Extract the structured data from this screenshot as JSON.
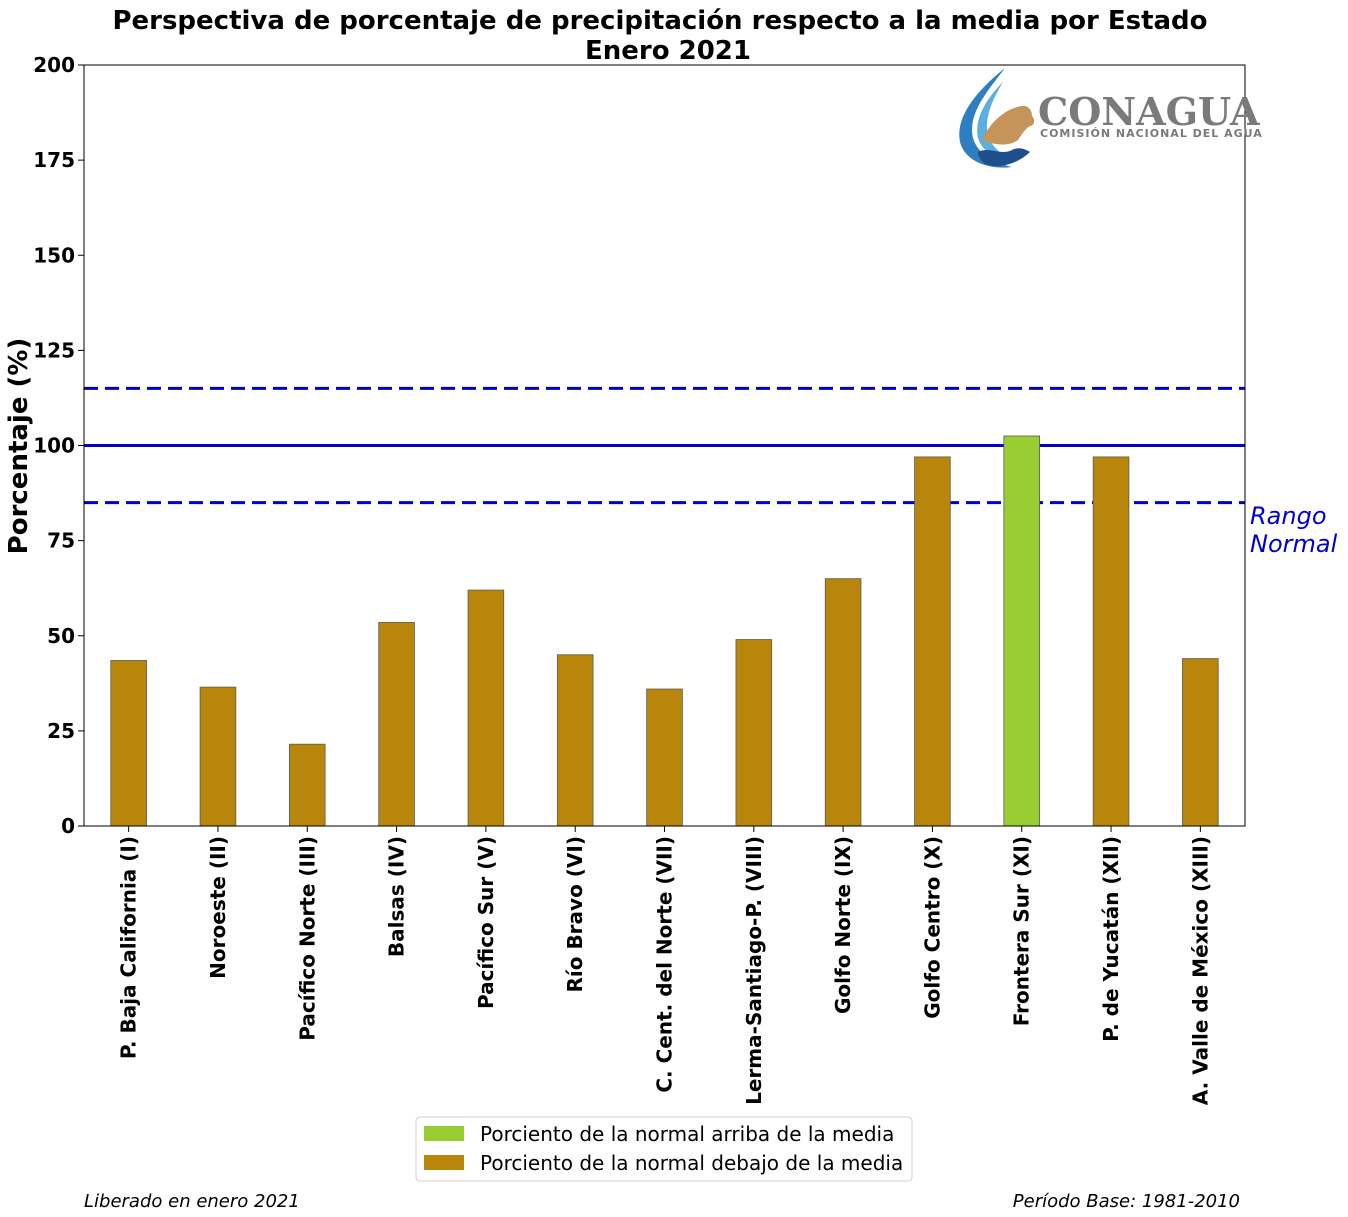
{
  "chart_data": {
    "type": "bar",
    "title": "Perspectiva de porcentaje de precipitación respecto a la media por Estado",
    "subtitle": "Enero 2021",
    "xlabel": "",
    "ylabel": "Porcentaje (%)",
    "ylim": [
      0,
      200
    ],
    "yticks": [
      0,
      25,
      50,
      75,
      100,
      125,
      150,
      175,
      200
    ],
    "categories": [
      "P. Baja California (I)",
      "Noroeste (II)",
      "Pacífico Norte (III)",
      "Balsas (IV)",
      "Pacífico Sur (V)",
      "Río Bravo (VI)",
      "C. Cent. del Norte (VII)",
      "Lerma-Santiago-P. (VIII)",
      "Golfo Norte (IX)",
      "Golfo Centro (X)",
      "Frontera Sur (XI)",
      "P. de Yucatán (XII)",
      "A. Valle de México (XIII)"
    ],
    "values": [
      43.5,
      36.5,
      21.5,
      53.5,
      62,
      45,
      36,
      49,
      65,
      97,
      102.5,
      97,
      44
    ],
    "reference_lines": {
      "mean": 100,
      "normal_range": [
        85,
        115
      ],
      "color": "#0000cd",
      "range_label": "Rango\nNormal"
    },
    "colors": {
      "above": "#9acd32",
      "below": "#b8860b"
    },
    "legend": {
      "placement": "bottom-center",
      "entries": [
        {
          "label": "Porciento de la normal arriba de la media",
          "color": "#9acd32"
        },
        {
          "label": "Porciento de la normal debajo de la media",
          "color": "#b8860b"
        }
      ]
    },
    "grid": false
  },
  "logo": {
    "name": "CONAGUA",
    "subtitle": "COMISIÓN NACIONAL DEL AGUA"
  },
  "footer": {
    "released": "Liberado en enero 2021",
    "base_period": "Período Base: 1981-2010"
  }
}
